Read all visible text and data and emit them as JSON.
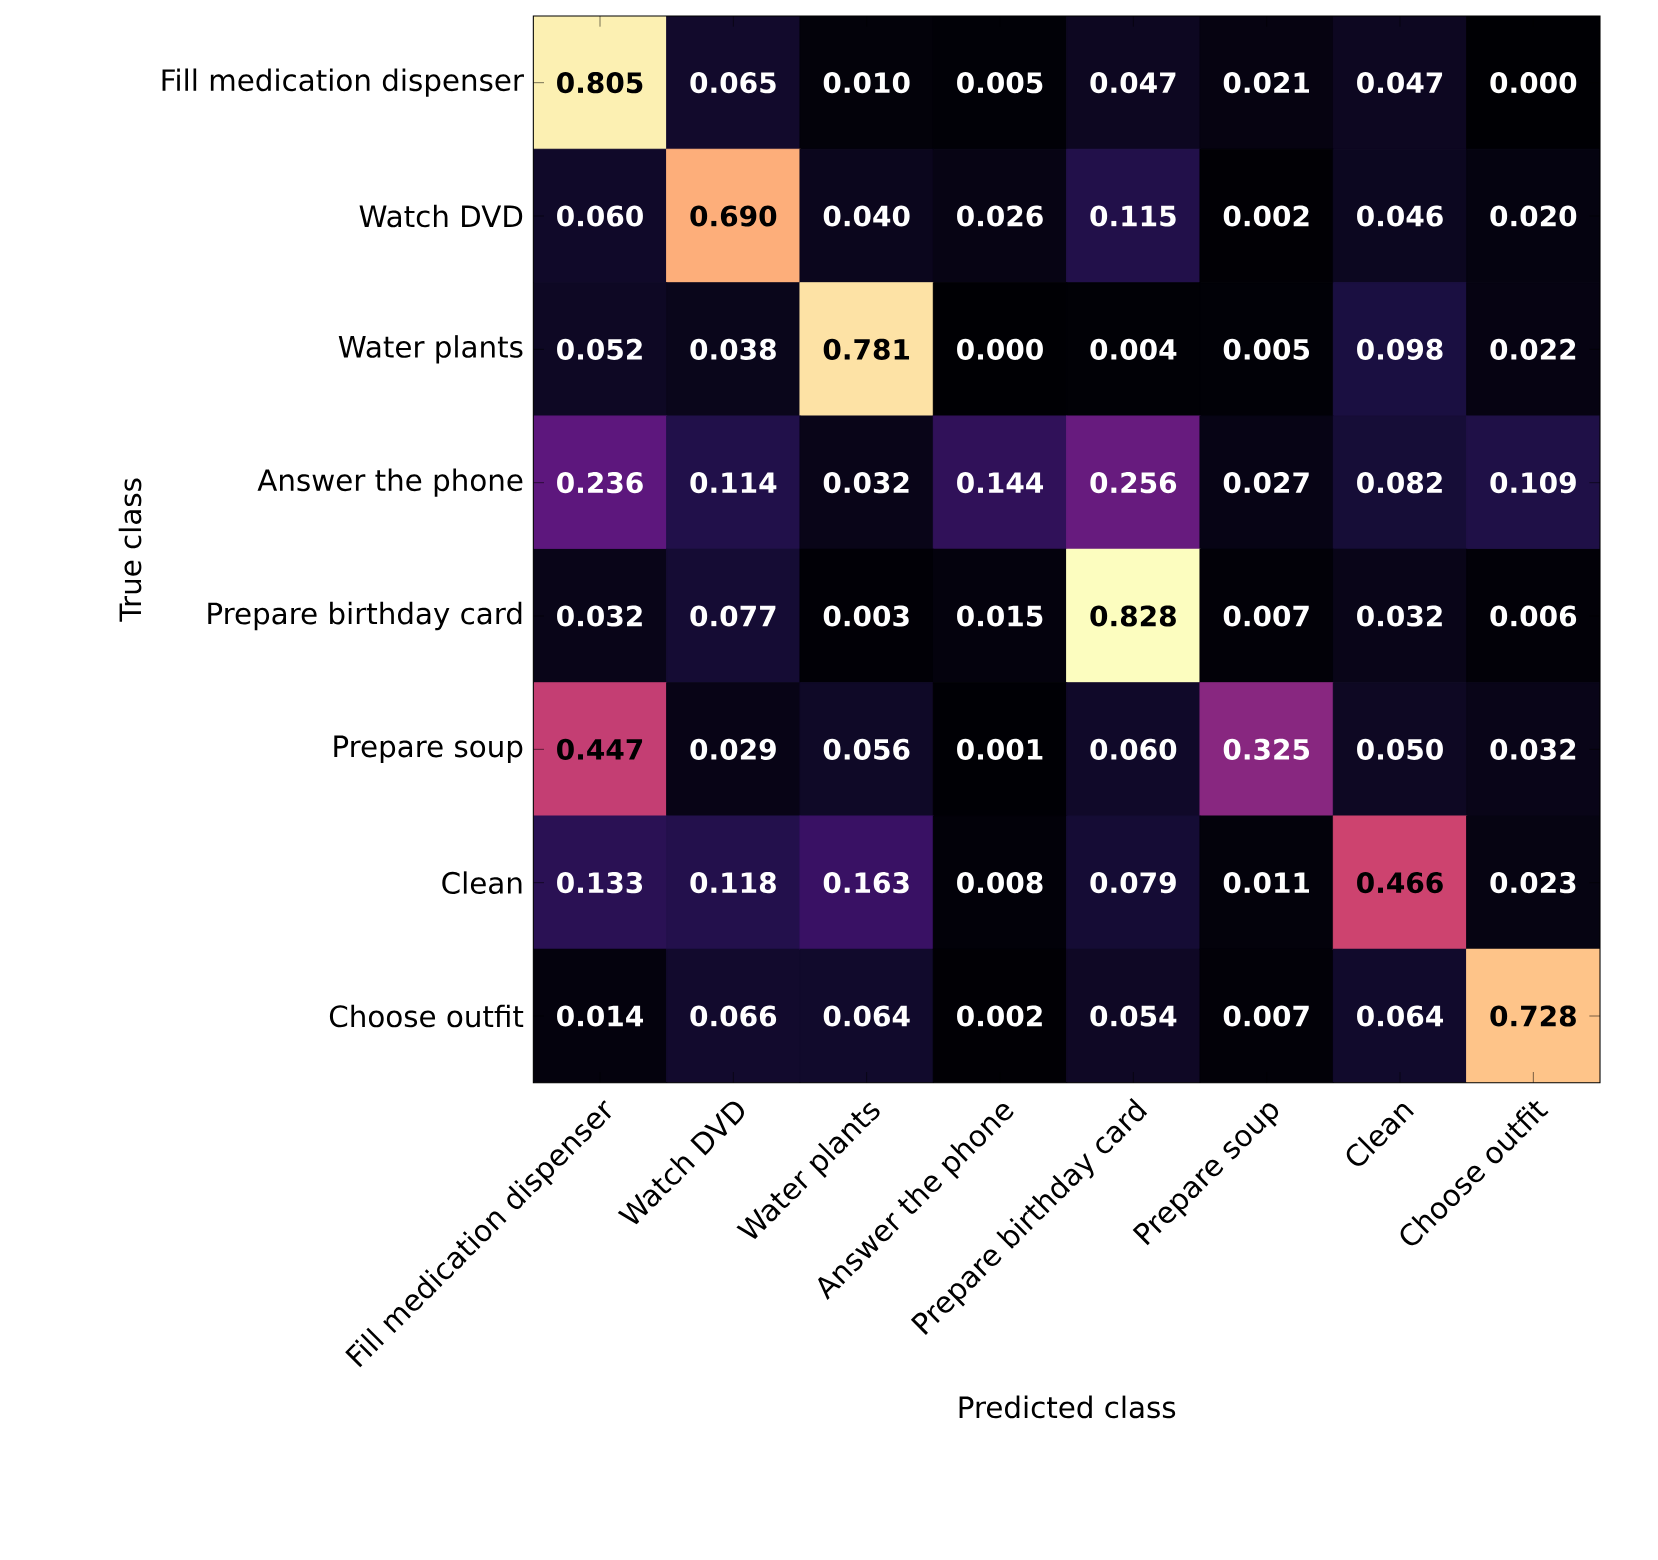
{
  "chart_data": {
    "type": "heatmap",
    "xlabel": "Predicted class",
    "ylabel": "True class",
    "categories": [
      "Fill medication dispenser",
      "Watch DVD",
      "Water plants",
      "Answer the phone",
      "Prepare birthday card",
      "Prepare soup",
      "Clean",
      "Choose outfit"
    ],
    "y_categories": [
      "Fill medication dispenser",
      "Watch DVD",
      "Water plants",
      "Answer the phone",
      "Prepare birthday card",
      "Prepare soup",
      "Clean",
      "Choose outfit"
    ],
    "cells": [
      [
        0.805,
        0.065,
        0.01,
        0.005,
        0.047,
        0.021,
        0.047,
        0.0
      ],
      [
        0.06,
        0.69,
        0.04,
        0.026,
        0.115,
        0.002,
        0.046,
        0.02
      ],
      [
        0.052,
        0.038,
        0.781,
        0.0,
        0.004,
        0.005,
        0.098,
        0.022
      ],
      [
        0.236,
        0.114,
        0.032,
        0.144,
        0.256,
        0.027,
        0.082,
        0.109
      ],
      [
        0.032,
        0.077,
        0.003,
        0.015,
        0.828,
        0.007,
        0.032,
        0.006
      ],
      [
        0.447,
        0.029,
        0.056,
        0.001,
        0.06,
        0.325,
        0.05,
        0.032
      ],
      [
        0.133,
        0.118,
        0.163,
        0.008,
        0.079,
        0.011,
        0.466,
        0.023
      ],
      [
        0.014,
        0.066,
        0.064,
        0.002,
        0.054,
        0.007,
        0.064,
        0.728
      ]
    ],
    "cell_labels": [
      [
        "0.805",
        "0.065",
        "0.010",
        "0.005",
        "0.047",
        "0.021",
        "0.047",
        "0.000"
      ],
      [
        "0.060",
        "0.690",
        "0.040",
        "0.026",
        "0.115",
        "0.002",
        "0.046",
        "0.020"
      ],
      [
        "0.052",
        "0.038",
        "0.781",
        "0.000",
        "0.004",
        "0.005",
        "0.098",
        "0.022"
      ],
      [
        "0.236",
        "0.114",
        "0.032",
        "0.144",
        "0.256",
        "0.027",
        "0.082",
        "0.109"
      ],
      [
        "0.032",
        "0.077",
        "0.003",
        "0.015",
        "0.828",
        "0.007",
        "0.032",
        "0.006"
      ],
      [
        "0.447",
        "0.029",
        "0.056",
        "0.001",
        "0.060",
        "0.325",
        "0.050",
        "0.032"
      ],
      [
        "0.133",
        "0.118",
        "0.163",
        "0.008",
        "0.079",
        "0.011",
        "0.466",
        "0.023"
      ],
      [
        "0.014",
        "0.066",
        "0.064",
        "0.002",
        "0.054",
        "0.007",
        "0.064",
        "0.728"
      ]
    ]
  }
}
